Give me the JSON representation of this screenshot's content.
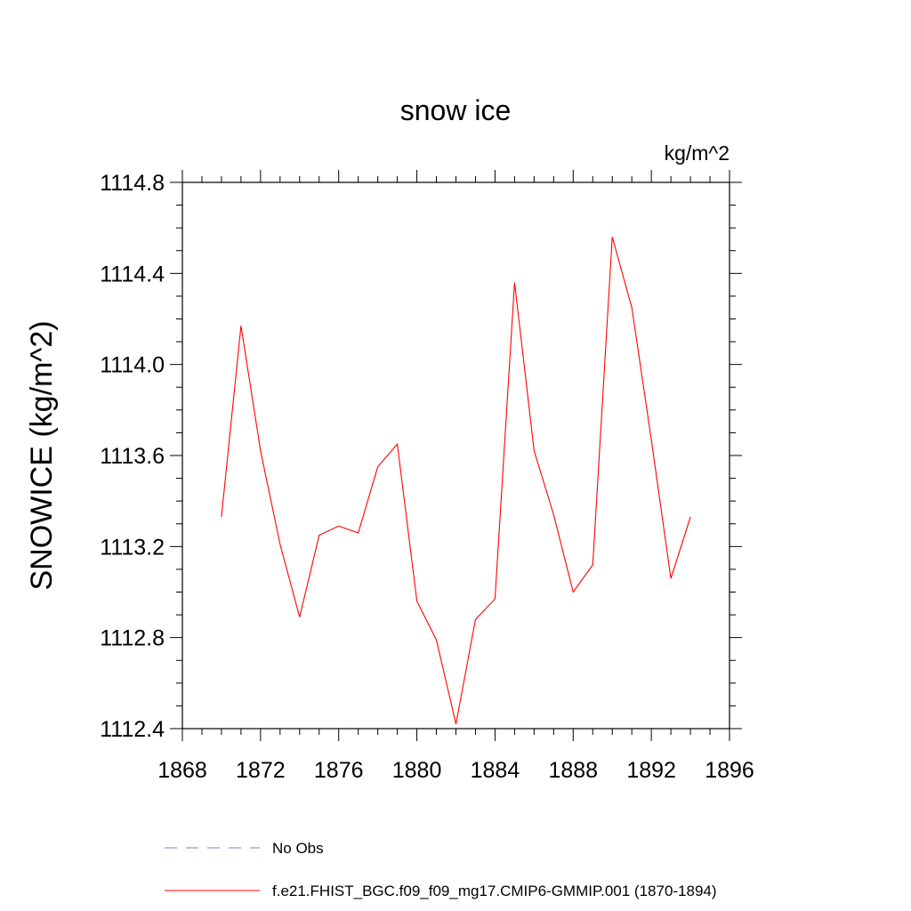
{
  "chart_data": {
    "type": "line",
    "title": "snow ice",
    "units": "kg/m^2",
    "ylabel": "SNOWICE  (kg/m^2)",
    "xlabel": "",
    "xlim": [
      1868,
      1896
    ],
    "ylim": [
      1112.4,
      1114.8
    ],
    "x_ticks": [
      "1868",
      "1872",
      "1876",
      "1880",
      "1884",
      "1888",
      "1892",
      "1896"
    ],
    "y_ticks": [
      "1112.4",
      "1112.8",
      "1113.2",
      "1113.6",
      "1114.0",
      "1114.4",
      "1114.8"
    ],
    "grid": false,
    "series": [
      {
        "name": "f.e21.FHIST_BGC.f09_f09_mg17.CMIP6-GMMIP.001 (1870-1894)",
        "color": "#ff0000",
        "style": "solid",
        "x": [
          1870,
          1871,
          1872,
          1873,
          1874,
          1875,
          1876,
          1877,
          1878,
          1879,
          1880,
          1881,
          1882,
          1883,
          1884,
          1885,
          1886,
          1887,
          1888,
          1889,
          1890,
          1891,
          1892,
          1893,
          1894
        ],
        "y": [
          1113.33,
          1114.17,
          1113.62,
          1113.21,
          1112.89,
          1113.25,
          1113.29,
          1113.26,
          1113.55,
          1113.65,
          1112.96,
          1112.79,
          1112.42,
          1112.88,
          1112.97,
          1114.36,
          1113.62,
          1113.34,
          1113.0,
          1113.12,
          1114.56,
          1114.25,
          1113.67,
          1113.06,
          1113.33
        ]
      }
    ],
    "legend": [
      {
        "label": "No Obs",
        "color": "#7b7bc9",
        "style": "dashed"
      },
      {
        "label": "f.e21.FHIST_BGC.f09_f09_mg17.CMIP6-GMMIP.001 (1870-1894)",
        "color": "#ff0000",
        "style": "solid"
      }
    ],
    "legend_position": "bottom"
  }
}
